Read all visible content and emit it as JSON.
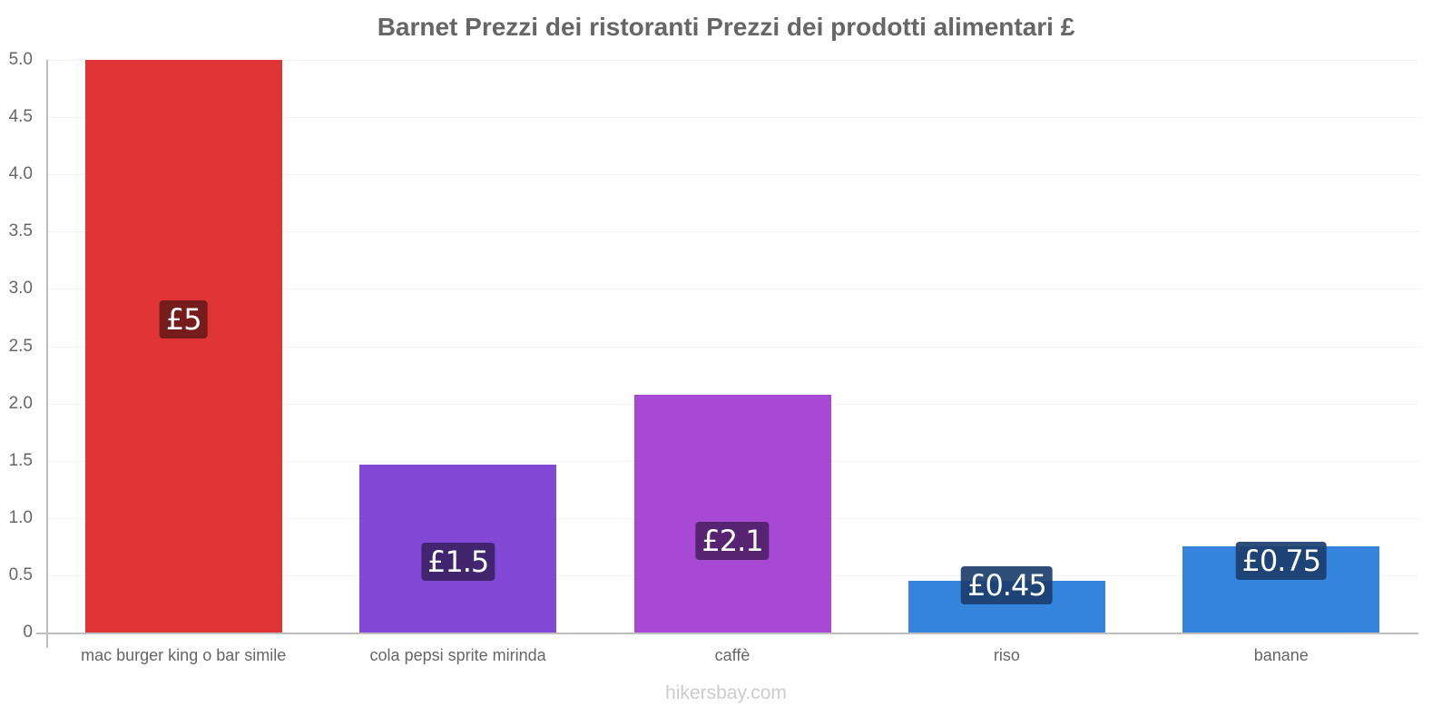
{
  "chart_data": {
    "type": "bar",
    "title": "Barnet Prezzi dei ristoranti Prezzi dei prodotti alimentari £",
    "xlabel": "",
    "ylabel": "",
    "ylim": [
      0,
      5.0
    ],
    "yticks": [
      "0",
      "0.5",
      "1.0",
      "1.5",
      "2.0",
      "2.5",
      "3.0",
      "3.5",
      "4.0",
      "4.5",
      "5.0"
    ],
    "grid": true,
    "legend": null,
    "categories": [
      "mac burger king o bar simile",
      "cola pepsi sprite mirinda",
      "caffè",
      "riso",
      "banane"
    ],
    "values": [
      5,
      1.47,
      2.08,
      0.45,
      0.75
    ],
    "value_labels": [
      "£5",
      "£1.5",
      "£2.1",
      "£0.45",
      "£0.75"
    ],
    "colors": [
      "#e03536",
      "#8249d6",
      "#a849d6",
      "#3584de",
      "#3584de"
    ],
    "label_bg_colors": [
      "#761c1d",
      "#42256f",
      "#562470",
      "#1c3f6e",
      "#1c3f6e"
    ]
  },
  "footer": "hikersbay.com"
}
